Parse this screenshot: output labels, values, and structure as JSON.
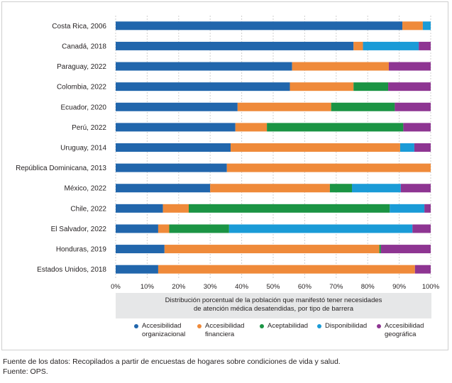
{
  "chart_data": {
    "type": "bar",
    "orientation": "horizontal",
    "stacked": true,
    "categories": [
      "Costa Rica, 2006",
      "Canadá, 2018",
      "Paraguay, 2022",
      "Colombia, 2022",
      "Ecuador, 2020",
      "Perú, 2022",
      "Uruguay, 2014",
      "República Dominicana, 2013",
      "México, 2022",
      "Chile, 2022",
      "El Salvador, 2022",
      "Honduras, 2019",
      "Estados Unidos, 2018"
    ],
    "series": [
      {
        "name": "Accesibilidad organizacional",
        "label_lines": [
          "Accesibilidad",
          "organizacional"
        ],
        "color": "#2166ac",
        "values": [
          91,
          75.5,
          56,
          55.3,
          38.7,
          38,
          36.5,
          35.3,
          30,
          15,
          13.5,
          15.5,
          13.5
        ]
      },
      {
        "name": "Accesibilidad financiera",
        "label_lines": [
          "Accesibilidad",
          "financiera"
        ],
        "color": "#ef8a3a",
        "values": [
          6.5,
          3,
          30.7,
          20.2,
          29.7,
          10,
          53.8,
          64.7,
          38,
          8.2,
          3.5,
          68.2,
          81.5
        ]
      },
      {
        "name": "Aceptabilidad",
        "label_lines": [
          "Aceptabilidad"
        ],
        "color": "#1b9444",
        "values": [
          0,
          0,
          0,
          11,
          20.2,
          43.3,
          0,
          0,
          7,
          63.8,
          19,
          0.5,
          0
        ]
      },
      {
        "name": "Disponibilidad",
        "label_lines": [
          "Disponibilidad"
        ],
        "color": "#1a9bd7",
        "values": [
          2.5,
          17.7,
          0,
          0,
          0,
          0,
          4.5,
          0,
          15.5,
          11,
          58.2,
          0,
          0
        ]
      },
      {
        "name": "Accesibilidad geográfica",
        "label_lines": [
          "Accesibilidad",
          "geográfica"
        ],
        "color": "#8e3592",
        "values": [
          0,
          3.8,
          13.3,
          13.5,
          11.4,
          8.7,
          5.2,
          0,
          9.5,
          2,
          5.8,
          15.8,
          5
        ]
      }
    ],
    "xlim": [
      0,
      100
    ],
    "xticks": [
      "0%",
      "10%",
      "20%",
      "30%",
      "40%",
      "50%",
      "60%",
      "70%",
      "80%",
      "90%",
      "100%"
    ],
    "xlabel_lines": [
      "Distribución porcentual de la población que manifestó tener necesidades",
      "de atención médica desatendidas, por tipo de barrera"
    ],
    "legend_position": "bottom"
  },
  "notes": {
    "source_data": "Fuente de los datos: Recopilados a partir de encuestas de hogares sobre condiciones de vida y salud.",
    "source": "Fuente: OPS."
  }
}
